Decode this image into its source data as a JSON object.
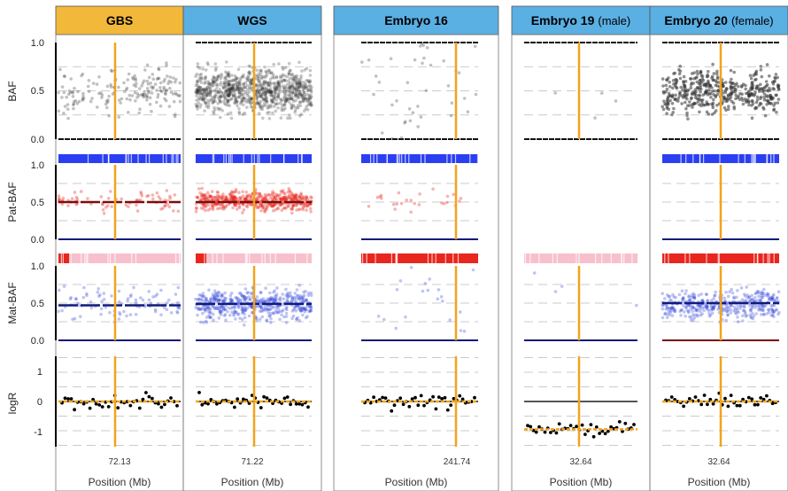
{
  "chart_data": {
    "type": "scatter",
    "columns": [
      {
        "title": "GBS",
        "subtitle": "",
        "color": "#f2b83a",
        "position": "72.13",
        "xlabel": "Position (Mb)"
      },
      {
        "title": "WGS",
        "subtitle": "",
        "color": "#5aafe3",
        "position": "71.22",
        "xlabel": "Position (Mb)"
      },
      {
        "title": "Embryo 16",
        "subtitle": "",
        "color": "#5aafe3",
        "position": "241.74",
        "xlabel": "Position (Mb)"
      },
      {
        "title": "Embryo 19",
        "subtitle": "(male)",
        "color": "#5aafe3",
        "position": "32.64",
        "xlabel": "Position (Mb)"
      },
      {
        "title": "Embryo 20",
        "subtitle": "(female)",
        "color": "#5aafe3",
        "position": "32.64",
        "xlabel": "Position (Mb)"
      }
    ],
    "rows": [
      {
        "label": "BAF",
        "ticks": [
          "1.0",
          "0.5",
          "0.0"
        ],
        "ylim": [
          0,
          1
        ]
      },
      {
        "label": "Pat-BAF",
        "ticks": [
          "1.0",
          "0.5",
          "0.0"
        ],
        "ylim": [
          0,
          1
        ]
      },
      {
        "label": "Mat-BAF",
        "ticks": [
          "1.0",
          "0.5",
          "0.0"
        ],
        "ylim": [
          0,
          1
        ]
      },
      {
        "label": "logR",
        "ticks": [
          "1",
          "0",
          "-1"
        ],
        "ylim": [
          -1.6,
          1.6
        ]
      }
    ],
    "segments": {
      "pat_baf": [
        0.5,
        0.5,
        null,
        null,
        null
      ],
      "mat_baf": [
        0.47,
        0.49,
        null,
        null,
        0.5
      ],
      "logr_mean": [
        0,
        0,
        0,
        -0.95,
        0
      ]
    },
    "colors": {
      "baf_points": "#333333",
      "pat_points": "#e8261e",
      "mat_points": "#2b3fd6",
      "pat_strip": "#2a3ff2",
      "mat_strip": "#e8261e",
      "strip_light": "#f7c0cc",
      "segment_dark": "#7a0d0d",
      "segment_navy": "#111a7a",
      "marker_line": "#f2a31a",
      "logr_points": "#000000",
      "logr_mean": "#f2a31a"
    },
    "grid": true,
    "legend": "none"
  }
}
